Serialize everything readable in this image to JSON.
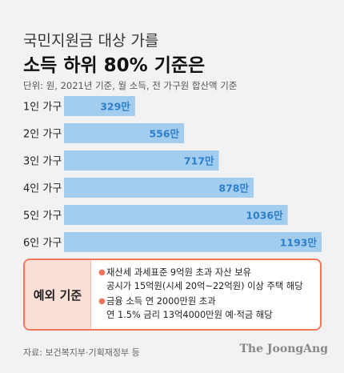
{
  "header": {
    "subtitle": "국민지원금 대상 가를",
    "title": "소득 하위 80% 기준은",
    "unit_note": "단위: 원, 2021년 기준, 월 소득, 전 가구원 합산액 기준"
  },
  "colors": {
    "bar": "#a3cdee",
    "value_text": "#2f7fc8",
    "accent": "#f0775b",
    "exception_bg": "#fbe0d8"
  },
  "chart_data": {
    "type": "bar",
    "orientation": "horizontal",
    "categories": [
      "1인 가구",
      "2인 가구",
      "3인 가구",
      "4인 가구",
      "5인 가구",
      "6인 가구"
    ],
    "values": [
      329,
      556,
      717,
      878,
      1036,
      1193
    ],
    "value_labels": [
      "329만",
      "556만",
      "717만",
      "878만",
      "1036만",
      "1193만"
    ],
    "title": "소득 하위 80% 기준은",
    "xlabel": "",
    "ylabel": "",
    "xlim": [
      0,
      1193
    ],
    "grid": false
  },
  "exception": {
    "label": "예외 기준",
    "items": [
      {
        "line1": "재산세 과세표준 9억원 초과 자산 보유",
        "line2": "공시가 15억원(시세 20억~22억원) 이상 주택 해당"
      },
      {
        "line1": "금융 소득 연 2000만원 초과",
        "line2": "연 1.5% 금리 13억4000만원 예·적금 해당"
      }
    ]
  },
  "footer": {
    "source": "자료: 보건복지부·기획재정부 등",
    "brand": "The JoongAng"
  }
}
